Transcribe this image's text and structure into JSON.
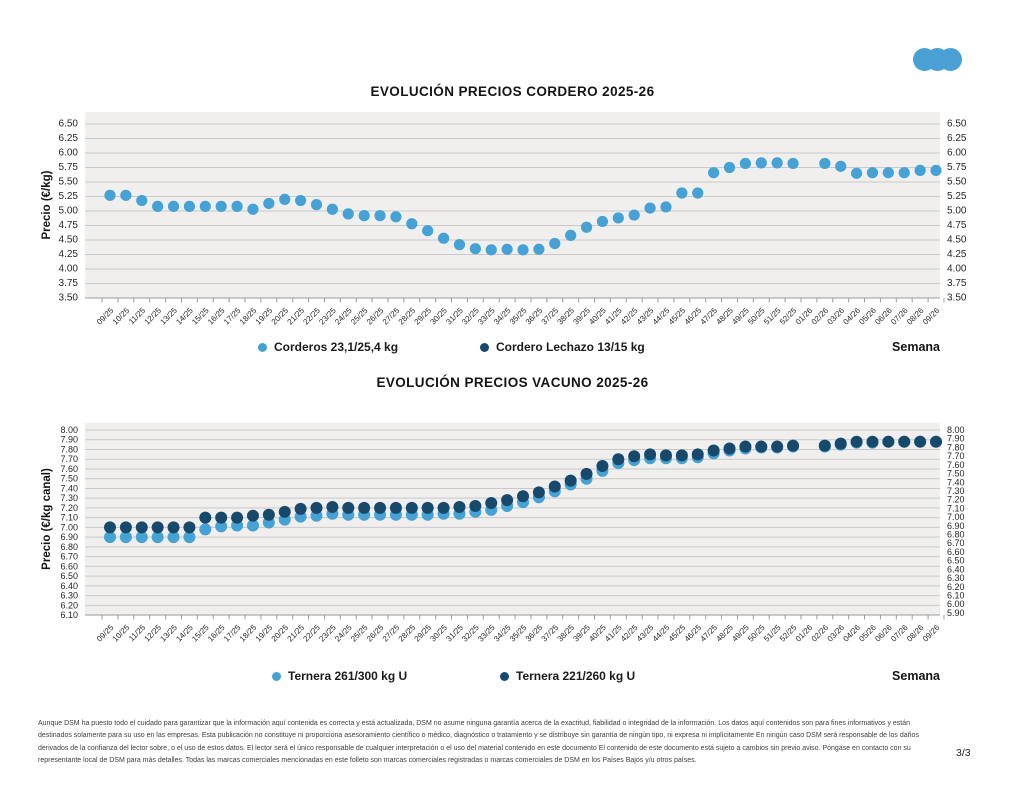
{
  "logo": {
    "color": "#4aa0d2",
    "dots": 3
  },
  "page_number": "3/3",
  "disclaimer": "Aunque DSM ha puesto todo el cuidado para garantizar que la información aquí contenida es correcta y está actualizada, DSM no asume ninguna garantía acerca de la exactitud, fiabilidad o integridad de la información. Los datos aquí contenidos son para fines informativos y están destinados solamente para su uso en las empresas. Esta publicación no constituye ni proporciona asesoramiento científico o médico, diagnóstico o tratamiento y se distribuye sin garantía de ningún tipo, ni expresa ni implícitamente En ningún caso DSM será responsable de los daños derivados de la confianza del lector sobre, o el uso de estos datos. El lector será el único responsable de cualquier interpretación o el uso del material contenido en este documento El contenido de este documento está sujeto a cambios sin previo aviso. Póngase en contacto con su representante local de DSM para más detalles. Todas las marcas comerciales mencionadas en este folleto son marcas comerciales registradas o marcas comerciales de DSM en los Países Bajos y/u otros países.",
  "colors": {
    "light_blue": "#46a2d4",
    "dark_navy": "#17496c",
    "plot_bg": "#f0efed",
    "gridline": "#c9c9c9",
    "axis": "#9a9a9a"
  },
  "chart_data": [
    {
      "type": "scatter",
      "title": "EVOLUCIÓN PRECIOS CORDERO 2025-26",
      "ylabel": "Precio (€/kg)",
      "xlabel": "Semana",
      "ylim": [
        3.5,
        6.5
      ],
      "ystep": 0.25,
      "grid": true,
      "legend_position": "bottom",
      "y_ticks_left": [
        "6.50",
        "6.25",
        "6.00",
        "5.75",
        "5.50",
        "5.25",
        "5.00",
        "4.75",
        "4.50",
        "4.25",
        "4.00",
        "3.75",
        "3.50"
      ],
      "y_ticks_right": [
        "6.50",
        "6.25",
        "6.00",
        "5.75",
        "5.50",
        "5.25",
        "5.00",
        "4.75",
        "4.50",
        "4.25",
        "4.00",
        "3.75",
        "3.50"
      ],
      "categories": [
        "09/25",
        "10/25",
        "11/25",
        "12/25",
        "13/25",
        "14/25",
        "15/25",
        "16/25",
        "17/25",
        "18/25",
        "19/25",
        "20/25",
        "21/25",
        "22/25",
        "23/25",
        "24/25",
        "25/25",
        "26/25",
        "27/25",
        "28/25",
        "29/25",
        "30/25",
        "31/25",
        "32/25",
        "33/25",
        "34/25",
        "35/25",
        "36/25",
        "37/25",
        "38/25",
        "39/25",
        "40/25",
        "41/25",
        "42/25",
        "43/25",
        "44/25",
        "45/25",
        "46/25",
        "47/25",
        "48/25",
        "49/25",
        "50/25",
        "51/25",
        "52/25",
        "01/26",
        "02/26",
        "03/26",
        "04/26",
        "05/26",
        "06/26",
        "07/26",
        "08/26",
        "09/26"
      ],
      "series": [
        {
          "name": "Corderos 23,1/25,4 kg",
          "color": "#46a2d4",
          "values": [
            5.27,
            5.27,
            5.18,
            5.08,
            5.08,
            5.08,
            5.08,
            5.08,
            5.08,
            5.03,
            5.13,
            5.2,
            5.18,
            5.11,
            5.03,
            4.95,
            4.92,
            4.92,
            4.9,
            4.78,
            4.66,
            4.53,
            4.42,
            4.35,
            4.33,
            4.34,
            4.33,
            4.34,
            4.44,
            4.58,
            4.72,
            4.82,
            4.88,
            4.93,
            5.05,
            5.07,
            5.31,
            5.31,
            5.66,
            5.75,
            5.82,
            5.83,
            5.83,
            5.82,
            null,
            5.82,
            5.77,
            5.65,
            5.66,
            5.66,
            5.66,
            5.7,
            5.7
          ]
        },
        {
          "name": "Cordero Lechazo 13/15 kg",
          "color": "#17496c",
          "values": []
        }
      ]
    },
    {
      "type": "scatter",
      "title": "EVOLUCIÓN PRECIOS VACUNO 2025-26",
      "ylabel": "Precio (€/kg canal)",
      "xlabel": "Semana",
      "ylim": [
        6.1,
        8.0
      ],
      "ystep": 0.1,
      "grid": true,
      "legend_position": "bottom",
      "y_ticks_left": [
        "8.00",
        "7.90",
        "7.80",
        "7.70",
        "7.60",
        "7.50",
        "7.40",
        "7.30",
        "7.20",
        "7.10",
        "7.00",
        "6.90",
        "6.80",
        "6.70",
        "6.60",
        "6.50",
        "6.40",
        "6.30",
        "6.20",
        "6.10"
      ],
      "y_ticks_right": [
        "8.00",
        "7.90",
        "7.80",
        "7.70",
        "7.60",
        "7.50",
        "7.40",
        "7.30",
        "7.20",
        "7.10",
        "7.00",
        "6.90",
        "6.80",
        "6.70",
        "6.60",
        "6.50",
        "6.40",
        "6.30",
        "6.20",
        "6.10",
        "6.00",
        "5.90"
      ],
      "categories": [
        "09/25",
        "10/25",
        "11/25",
        "12/25",
        "13/25",
        "14/25",
        "15/25",
        "16/25",
        "17/25",
        "18/25",
        "19/25",
        "20/25",
        "21/25",
        "22/25",
        "23/25",
        "24/25",
        "25/25",
        "26/25",
        "27/25",
        "28/25",
        "29/25",
        "30/25",
        "31/25",
        "32/25",
        "33/25",
        "34/25",
        "35/25",
        "36/25",
        "37/25",
        "38/25",
        "39/25",
        "40/25",
        "41/25",
        "42/25",
        "43/25",
        "44/25",
        "45/25",
        "46/25",
        "47/25",
        "48/25",
        "49/25",
        "50/25",
        "51/25",
        "52/25",
        "01/26",
        "02/26",
        "03/26",
        "04/26",
        "05/26",
        "06/26",
        "07/26",
        "08/26",
        "09/26"
      ],
      "series": [
        {
          "name": "Ternera 261/300 kg U",
          "color": "#46a2d4",
          "values": [
            6.9,
            6.9,
            6.9,
            6.9,
            6.9,
            6.9,
            6.98,
            7.01,
            7.02,
            7.02,
            7.05,
            7.08,
            7.11,
            7.12,
            7.14,
            7.13,
            7.13,
            7.13,
            7.13,
            7.13,
            7.13,
            7.14,
            7.14,
            7.16,
            7.18,
            7.22,
            7.26,
            7.31,
            7.37,
            7.44,
            7.5,
            7.58,
            7.66,
            7.69,
            7.71,
            7.71,
            7.71,
            7.72,
            7.76,
            7.79,
            7.81,
            7.82,
            7.82,
            7.83,
            null,
            7.83,
            7.85,
            7.87,
            7.87,
            7.88,
            7.88,
            7.88,
            7.88
          ]
        },
        {
          "name": "Ternera 221/260 kg U",
          "color": "#17496c",
          "values": [
            7.0,
            7.0,
            7.0,
            7.0,
            7.0,
            7.0,
            7.1,
            7.1,
            7.1,
            7.12,
            7.13,
            7.16,
            7.19,
            7.2,
            7.21,
            7.2,
            7.2,
            7.2,
            7.2,
            7.2,
            7.2,
            7.2,
            7.21,
            7.22,
            7.25,
            7.28,
            7.32,
            7.36,
            7.42,
            7.48,
            7.55,
            7.63,
            7.7,
            7.73,
            7.75,
            7.74,
            7.74,
            7.75,
            7.79,
            7.81,
            7.83,
            7.83,
            7.83,
            7.84,
            null,
            7.84,
            7.86,
            7.88,
            7.88,
            7.88,
            7.88,
            7.88,
            7.88
          ]
        }
      ]
    }
  ]
}
